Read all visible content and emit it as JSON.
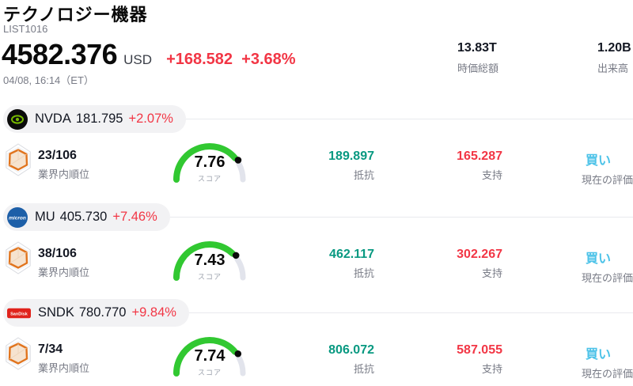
{
  "header": {
    "title": "テクノロジー機器",
    "subtitle": "LIST1016",
    "price": "4582.376",
    "currency": "USD",
    "change": "+168.582  +3.68%",
    "timestamp": "04/08, 16:14（ET）",
    "market_cap": {
      "value": "13.83T",
      "label": "時価総額"
    },
    "volume": {
      "value": "1.20B",
      "label": "出来高"
    }
  },
  "gauge": {
    "max": 10
  },
  "colors": {
    "change_red": "#f23645",
    "resistance_teal": "#089981",
    "rating_cyan": "#4bc2e8",
    "gauge_green": "#31c831",
    "gauge_track": "#e2e4ec",
    "text_dark": "#131722",
    "text_gray": "#787b86"
  },
  "icons": {
    "nvda_logo": "nvidia-eye-logo",
    "mu_logo": "micron-logo",
    "sndk_logo": "sandisk-logo",
    "rank_icon": "hexagon-radar-icon"
  },
  "rows": [
    {
      "ticker": "NVDA",
      "price": "181.795",
      "change": "+2.07%",
      "logo_text": "",
      "rank": "23/106",
      "rank_label": "業界内順位",
      "score": "7.76",
      "score_label": "スコア",
      "resistance": "189.897",
      "resistance_label": "抵抗",
      "support": "165.287",
      "support_label": "支持",
      "rating": "買い",
      "rating_label": "現在の評価"
    },
    {
      "ticker": "MU",
      "price": "405.730",
      "change": "+7.46%",
      "logo_text": "micron",
      "rank": "38/106",
      "rank_label": "業界内順位",
      "score": "7.43",
      "score_label": "スコア",
      "resistance": "462.117",
      "resistance_label": "抵抗",
      "support": "302.267",
      "support_label": "支持",
      "rating": "買い",
      "rating_label": "現在の評価"
    },
    {
      "ticker": "SNDK",
      "price": "780.770",
      "change": "+9.84%",
      "logo_text": "SanDisk",
      "rank": "7/34",
      "rank_label": "業界内順位",
      "score": "7.74",
      "score_label": "スコア",
      "resistance": "806.072",
      "resistance_label": "抵抗",
      "support": "587.055",
      "support_label": "支持",
      "rating": "買い",
      "rating_label": "現在の評価"
    }
  ]
}
